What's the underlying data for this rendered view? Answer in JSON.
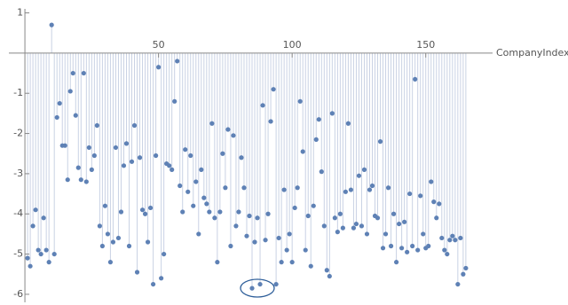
{
  "chart_data": {
    "type": "stem",
    "x_label": "CompanyIndex",
    "x": [
      1,
      2,
      3,
      4,
      5,
      6,
      7,
      8,
      9,
      10,
      11,
      12,
      13,
      14,
      15,
      16,
      17,
      18,
      19,
      20,
      21,
      22,
      23,
      24,
      25,
      26,
      27,
      28,
      29,
      30,
      31,
      32,
      33,
      34,
      35,
      36,
      37,
      38,
      39,
      40,
      41,
      42,
      43,
      44,
      45,
      46,
      47,
      48,
      49,
      50,
      51,
      52,
      53,
      54,
      55,
      56,
      57,
      58,
      59,
      60,
      61,
      62,
      63,
      64,
      65,
      66,
      67,
      68,
      69,
      70,
      71,
      72,
      73,
      74,
      75,
      76,
      77,
      78,
      79,
      80,
      81,
      82,
      83,
      84,
      85,
      86,
      87,
      88,
      89,
      90,
      91,
      92,
      93,
      94,
      95,
      96,
      97,
      98,
      99,
      100,
      101,
      102,
      103,
      104,
      105,
      106,
      107,
      108,
      109,
      110,
      111,
      112,
      113,
      114,
      115,
      116,
      117,
      118,
      119,
      120,
      121,
      122,
      123,
      124,
      125,
      126,
      127,
      128,
      129,
      130,
      131,
      132,
      133,
      134,
      135,
      136,
      137,
      138,
      139,
      140,
      141,
      142,
      143,
      144,
      145,
      146,
      147,
      148,
      149,
      150,
      151,
      152,
      153,
      154,
      155,
      156,
      157,
      158,
      159,
      160,
      161,
      162,
      163,
      164,
      165
    ],
    "values": [
      -5.1,
      -5.3,
      -4.3,
      -3.9,
      -4.9,
      -5.0,
      -4.1,
      -4.9,
      -5.2,
      0.7,
      -5.0,
      -1.6,
      -1.25,
      -2.3,
      -2.3,
      -3.15,
      -0.95,
      -0.5,
      -1.55,
      -2.85,
      -3.15,
      -0.5,
      -3.2,
      -2.35,
      -2.9,
      -2.55,
      -1.8,
      -4.3,
      -4.8,
      -3.8,
      -4.5,
      -5.2,
      -4.7,
      -2.35,
      -4.6,
      -3.95,
      -2.8,
      -2.25,
      -4.8,
      -2.7,
      -1.8,
      -5.45,
      -2.6,
      -3.9,
      -4.0,
      -4.7,
      -3.85,
      -5.75,
      -2.55,
      -0.35,
      -5.6,
      -5.0,
      -2.75,
      -2.8,
      -2.9,
      -1.2,
      -0.2,
      -3.3,
      -3.95,
      -2.4,
      -3.45,
      -2.55,
      -3.8,
      -3.2,
      -4.5,
      -2.9,
      -3.6,
      -3.75,
      -3.95,
      -1.75,
      -4.1,
      -5.2,
      -3.95,
      -2.5,
      -3.35,
      -1.9,
      -4.8,
      -2.05,
      -4.3,
      -3.95,
      -2.6,
      -3.35,
      -4.55,
      -4.05,
      -5.85,
      -4.7,
      -4.1,
      -5.75,
      -1.3,
      -4.65,
      -4.0,
      -1.7,
      -0.9,
      -5.75,
      -4.6,
      -5.2,
      -3.4,
      -4.9,
      -4.5,
      -5.2,
      -3.85,
      -3.35,
      -1.2,
      -2.45,
      -4.9,
      -4.05,
      -5.3,
      -3.8,
      -2.15,
      -1.65,
      -2.95,
      -4.3,
      -5.4,
      -5.55,
      -1.5,
      -4.1,
      -4.45,
      -4.0,
      -4.35,
      -3.45,
      -1.75,
      -3.4,
      -4.35,
      -4.25,
      -3.05,
      -4.3,
      -2.9,
      -4.5,
      -3.4,
      -3.3,
      -4.05,
      -4.1,
      -2.2,
      -4.85,
      -4.5,
      -3.35,
      -4.8,
      -4.0,
      -5.2,
      -4.25,
      -4.85,
      -4.2,
      -4.95,
      -3.5,
      -4.8,
      -0.65,
      -4.9,
      -3.55,
      -4.5,
      -4.85,
      -4.8,
      -3.2,
      -3.7,
      -4.1,
      -3.75,
      -4.6,
      -4.9,
      -5.0,
      -4.65,
      -4.55,
      -4.65,
      -5.75,
      -4.6,
      -5.5,
      -5.35
    ],
    "point_color": "#5e81b5",
    "stem_color": "#c9d2e4",
    "xlim": [
      -6,
      175
    ],
    "ylim": [
      -6.2,
      1.1
    ],
    "xticks": [
      50,
      100,
      150
    ],
    "yticks": [
      1,
      -1,
      -2,
      -3,
      -4,
      -5,
      -6
    ]
  }
}
